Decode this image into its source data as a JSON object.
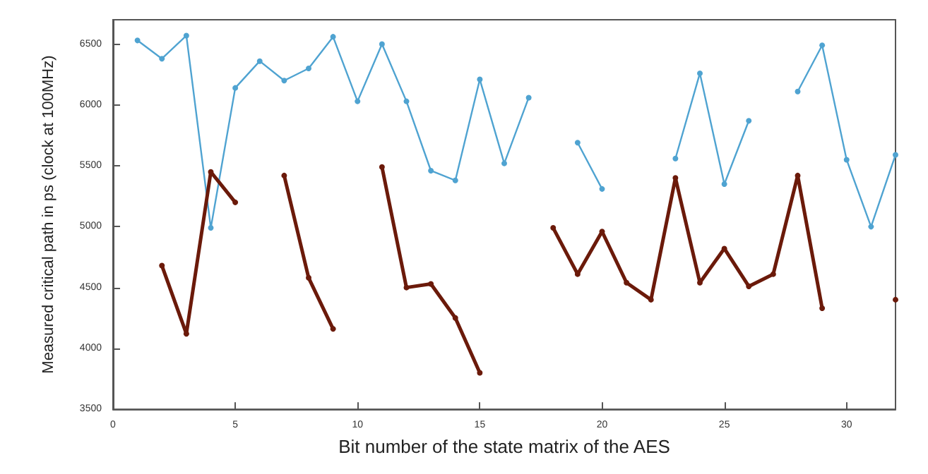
{
  "chart_data": {
    "type": "line",
    "xlabel": "Bit number of the state matrix of the AES",
    "ylabel": "Measured critical path in ps (clock at 100MHz)",
    "x": [
      1,
      2,
      3,
      4,
      5,
      6,
      7,
      8,
      9,
      10,
      11,
      12,
      13,
      14,
      15,
      16,
      17,
      18,
      19,
      20,
      21,
      22,
      23,
      24,
      25,
      26,
      27,
      28,
      29,
      30,
      31,
      32
    ],
    "series": [
      {
        "color": "#4fa3d1",
        "marker": "circle",
        "values": [
          6530,
          6380,
          6570,
          4990,
          6140,
          6360,
          6200,
          6300,
          6560,
          6030,
          6500,
          6030,
          5460,
          5380,
          6210,
          5520,
          6060,
          null,
          5690,
          5310,
          null,
          null,
          5560,
          6260,
          5350,
          5870,
          null,
          6110,
          6490,
          5550,
          5000,
          5590
        ]
      },
      {
        "color": "#6b1a0a",
        "marker": "circle",
        "values": [
          null,
          4680,
          4120,
          5450,
          5200,
          null,
          5420,
          4580,
          4160,
          null,
          5490,
          4500,
          4530,
          4250,
          3800,
          null,
          null,
          4990,
          4610,
          4960,
          4540,
          4400,
          5400,
          4540,
          4820,
          4510,
          4610,
          5420,
          4330,
          null,
          null,
          4400
        ]
      }
    ],
    "xlim": [
      0,
      32
    ],
    "xticks": [
      0,
      5,
      10,
      15,
      20,
      25,
      30
    ],
    "ylim": [
      3500,
      6700
    ],
    "yticks": [
      3500,
      4000,
      4500,
      5000,
      5500,
      6000,
      6500
    ],
    "grid": false
  }
}
